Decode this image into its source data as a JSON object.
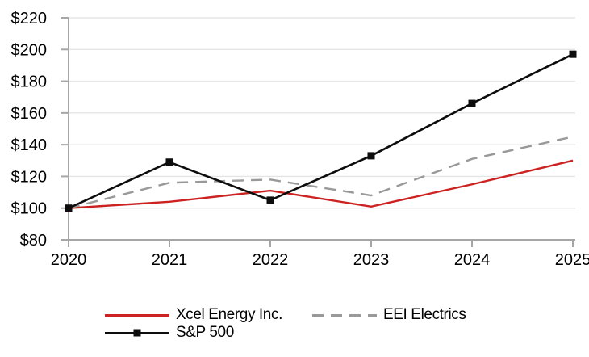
{
  "chart_data": {
    "type": "line",
    "x": [
      "2020",
      "2021",
      "2022",
      "2023",
      "2024",
      "2025"
    ],
    "series": [
      {
        "name": "Xcel Energy Inc.",
        "values": [
          100,
          104,
          111,
          101,
          115,
          130
        ],
        "color": "#cc2222",
        "line_style": "solid",
        "marker": "none"
      },
      {
        "name": "EEI Electrics",
        "values": [
          100,
          116,
          118,
          108,
          131,
          145
        ],
        "color": "#999999",
        "line_style": "dashed",
        "marker": "none"
      },
      {
        "name": "S&P 500",
        "values": [
          100,
          129,
          105,
          133,
          166,
          197
        ],
        "color": "#0d0d0d",
        "line_style": "solid",
        "marker": "square"
      }
    ],
    "ylim": [
      80,
      220
    ],
    "y_ticks": [
      {
        "value": 220,
        "label": "$220"
      },
      {
        "value": 200,
        "label": "$200"
      },
      {
        "value": 180,
        "label": "$180"
      },
      {
        "value": 160,
        "label": "$160"
      },
      {
        "value": 140,
        "label": "$140"
      },
      {
        "value": 120,
        "label": "$120"
      },
      {
        "value": 100,
        "label": "$100"
      },
      {
        "value": 80,
        "label": "$80"
      }
    ],
    "x_ticks": [
      {
        "label": "2020"
      },
      {
        "label": "2021"
      },
      {
        "label": "2022"
      },
      {
        "label": "2023"
      },
      {
        "label": "2024"
      },
      {
        "label": "2025"
      }
    ],
    "grid": true,
    "legend_position": "bottom",
    "axis_color": "#a6a6a6",
    "grid_color": "#e5e5e5",
    "text_color": "#000000"
  }
}
